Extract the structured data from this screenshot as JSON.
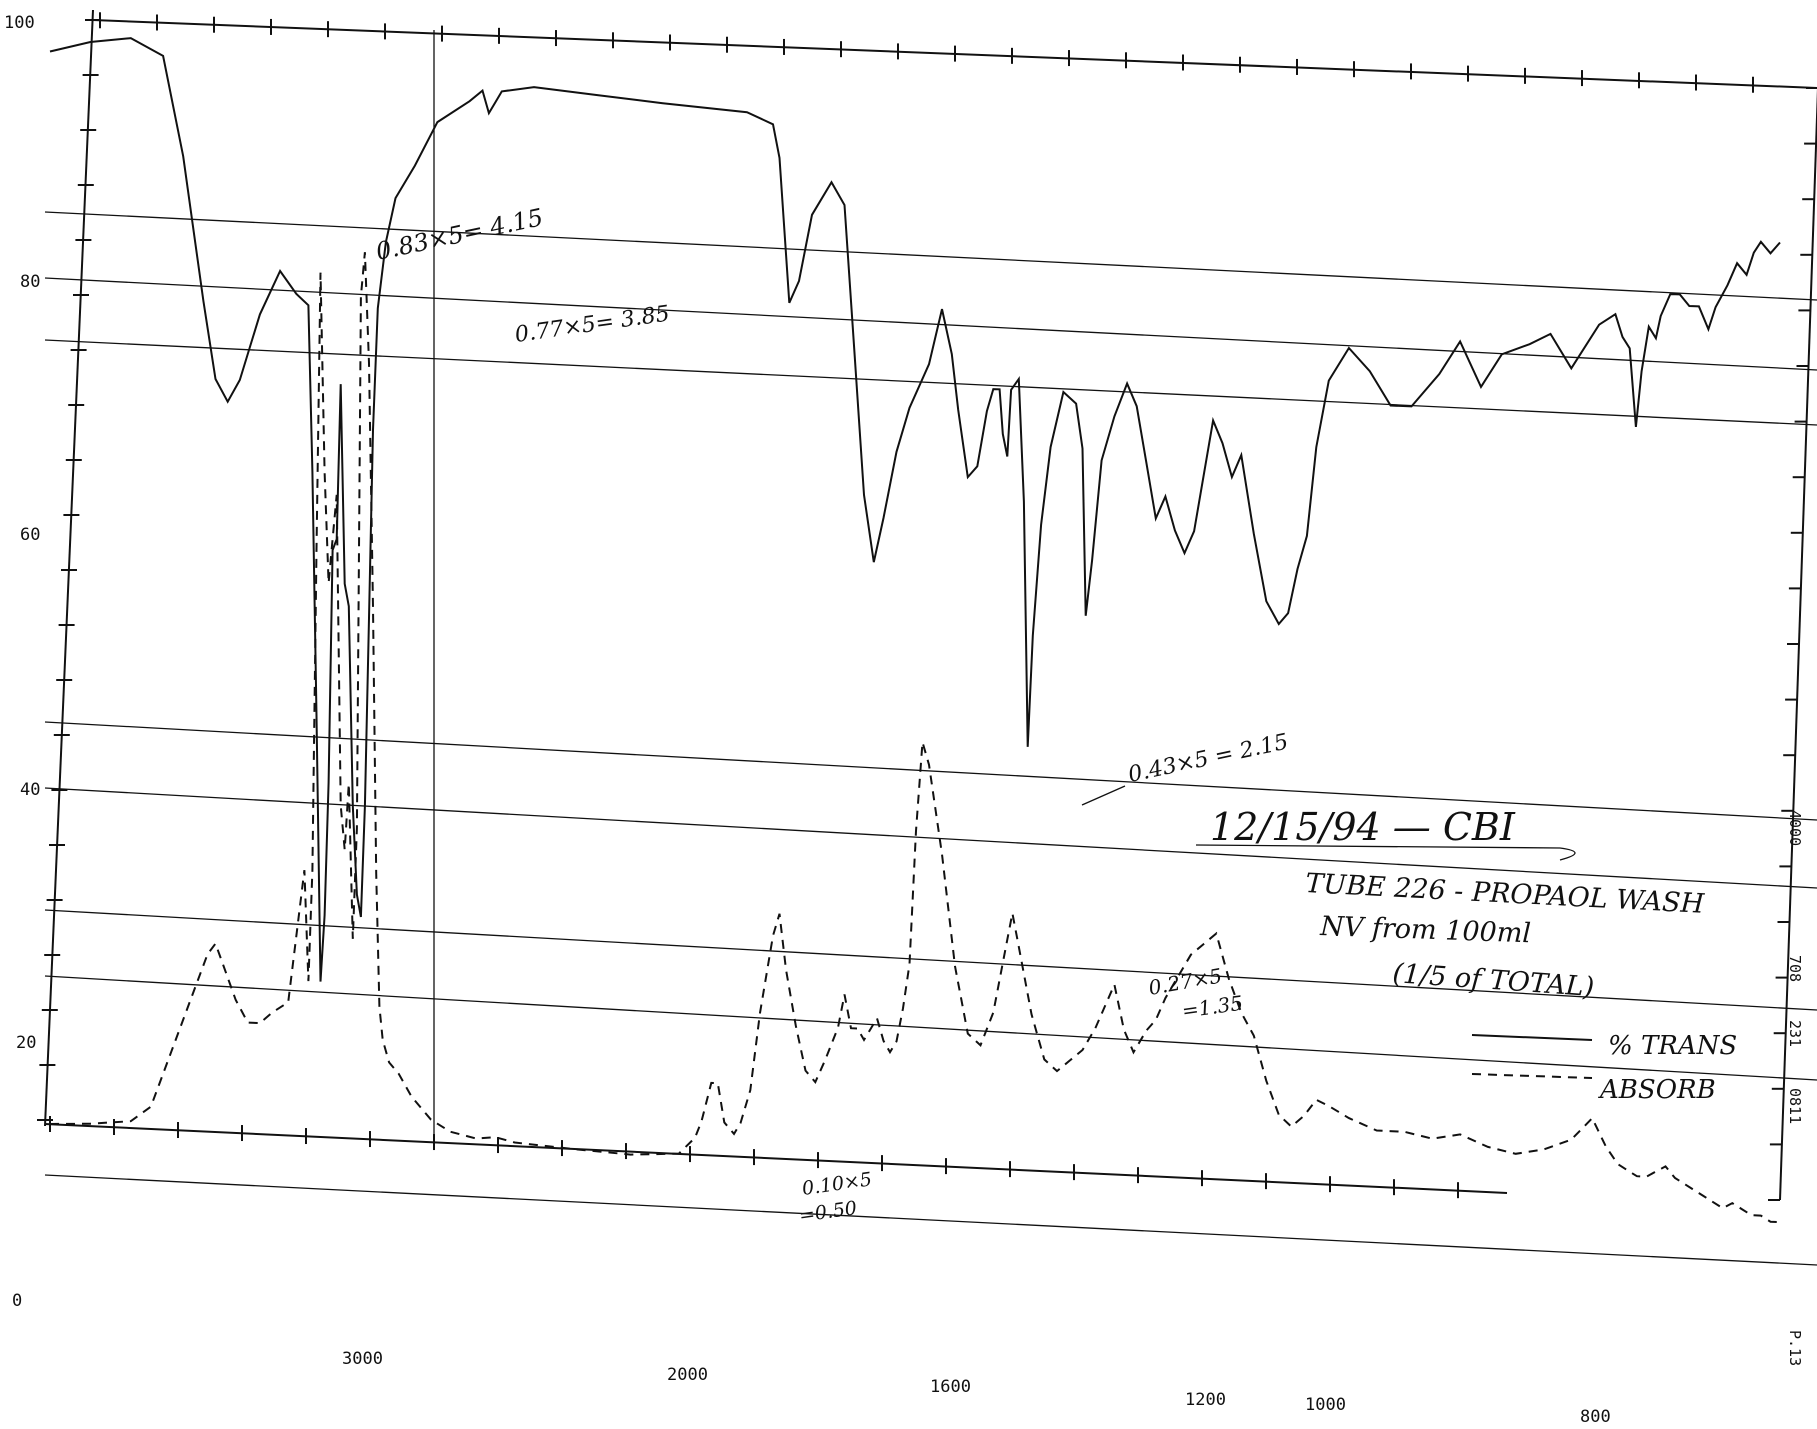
{
  "chart_data": {
    "type": "line",
    "title": "",
    "xlabel": "",
    "ylabel": "",
    "x_axis": {
      "reversed": true,
      "xlim": [
        3800,
        450
      ],
      "tick_labels": [
        "3000",
        "2000",
        "1600",
        "1200",
        "1000",
        "800"
      ]
    },
    "y_axis": {
      "ylim": [
        0,
        100
      ],
      "tick_labels": [
        "100",
        "80",
        "60",
        "40",
        "20",
        "0"
      ]
    },
    "grid": false,
    "series": [
      {
        "name": "% Trans",
        "style": "solid",
        "points": [
          [
            3800,
            97
          ],
          [
            3700,
            98
          ],
          [
            3600,
            98.5
          ],
          [
            3520,
            97
          ],
          [
            3470,
            88
          ],
          [
            3420,
            75
          ],
          [
            3390,
            68
          ],
          [
            3360,
            66
          ],
          [
            3330,
            68
          ],
          [
            3280,
            74
          ],
          [
            3230,
            78
          ],
          [
            3190,
            76
          ],
          [
            3160,
            75
          ],
          [
            3150,
            60
          ],
          [
            3140,
            38
          ],
          [
            3130,
            14
          ],
          [
            3120,
            20
          ],
          [
            3110,
            32
          ],
          [
            3100,
            53
          ],
          [
            3090,
            54
          ],
          [
            3080,
            68
          ],
          [
            3070,
            50
          ],
          [
            3060,
            48
          ],
          [
            3050,
            30
          ],
          [
            3040,
            22
          ],
          [
            3030,
            20
          ],
          [
            3020,
            30
          ],
          [
            3010,
            47
          ],
          [
            3000,
            64
          ],
          [
            2985,
            75
          ],
          [
            2960,
            81
          ],
          [
            2930,
            85
          ],
          [
            2870,
            88
          ],
          [
            2800,
            92
          ],
          [
            2700,
            94
          ],
          [
            2660,
            95
          ],
          [
            2640,
            93
          ],
          [
            2620,
            94
          ],
          [
            2600,
            95
          ],
          [
            2500,
            95.5
          ],
          [
            2300,
            95
          ],
          [
            2100,
            94.5
          ],
          [
            1920,
            94
          ],
          [
            1880,
            93
          ],
          [
            1870,
            90
          ],
          [
            1855,
            77
          ],
          [
            1840,
            79
          ],
          [
            1820,
            85
          ],
          [
            1790,
            88
          ],
          [
            1770,
            86
          ],
          [
            1755,
            73
          ],
          [
            1740,
            60
          ],
          [
            1725,
            54
          ],
          [
            1710,
            58
          ],
          [
            1690,
            64
          ],
          [
            1670,
            68
          ],
          [
            1640,
            72
          ],
          [
            1620,
            77
          ],
          [
            1605,
            73
          ],
          [
            1595,
            68
          ],
          [
            1580,
            62
          ],
          [
            1565,
            63
          ],
          [
            1550,
            68
          ],
          [
            1540,
            70
          ],
          [
            1530,
            70
          ],
          [
            1525,
            66
          ],
          [
            1518,
            64
          ],
          [
            1512,
            70
          ],
          [
            1500,
            71
          ],
          [
            1492,
            60
          ],
          [
            1486,
            38
          ],
          [
            1478,
            48
          ],
          [
            1465,
            58
          ],
          [
            1450,
            65
          ],
          [
            1430,
            70
          ],
          [
            1410,
            69
          ],
          [
            1400,
            65
          ],
          [
            1395,
            50
          ],
          [
            1385,
            55
          ],
          [
            1370,
            64
          ],
          [
            1350,
            68
          ],
          [
            1330,
            71
          ],
          [
            1315,
            69
          ],
          [
            1300,
            64
          ],
          [
            1285,
            59
          ],
          [
            1270,
            61
          ],
          [
            1255,
            58
          ],
          [
            1240,
            56
          ],
          [
            1225,
            58
          ],
          [
            1210,
            63
          ],
          [
            1195,
            68
          ],
          [
            1180,
            66
          ],
          [
            1165,
            63
          ],
          [
            1150,
            65
          ],
          [
            1130,
            58
          ],
          [
            1110,
            52
          ],
          [
            1090,
            50
          ],
          [
            1075,
            51
          ],
          [
            1060,
            55
          ],
          [
            1045,
            58
          ],
          [
            1030,
            66
          ],
          [
            1010,
            72
          ],
          [
            990,
            75
          ],
          [
            975,
            73
          ],
          [
            960,
            70
          ],
          [
            945,
            70
          ],
          [
            925,
            73
          ],
          [
            910,
            76
          ],
          [
            895,
            72
          ],
          [
            880,
            75
          ],
          [
            860,
            76
          ],
          [
            845,
            77
          ],
          [
            830,
            74
          ],
          [
            810,
            78
          ],
          [
            795,
            79
          ],
          [
            780,
            77
          ],
          [
            765,
            76
          ],
          [
            752,
            69
          ],
          [
            740,
            74
          ],
          [
            725,
            78
          ],
          [
            710,
            77
          ],
          [
            700,
            79
          ],
          [
            680,
            81
          ],
          [
            660,
            81
          ],
          [
            640,
            80
          ],
          [
            620,
            80
          ],
          [
            600,
            78
          ],
          [
            585,
            80
          ],
          [
            560,
            82
          ],
          [
            540,
            84
          ],
          [
            520,
            83
          ],
          [
            505,
            85
          ],
          [
            490,
            86
          ],
          [
            470,
            85
          ],
          [
            450,
            86
          ]
        ]
      },
      {
        "name": "Absorb",
        "style": "dashed",
        "points": [
          [
            3800,
            0
          ],
          [
            3700,
            0.2
          ],
          [
            3600,
            0.6
          ],
          [
            3550,
            2
          ],
          [
            3500,
            7
          ],
          [
            3450,
            12
          ],
          [
            3410,
            16
          ],
          [
            3390,
            17
          ],
          [
            3370,
            15
          ],
          [
            3340,
            12
          ],
          [
            3310,
            10
          ],
          [
            3280,
            10
          ],
          [
            3250,
            11
          ],
          [
            3210,
            12
          ],
          [
            3190,
            18
          ],
          [
            3170,
            24
          ],
          [
            3160,
            14
          ],
          [
            3150,
            24
          ],
          [
            3140,
            53
          ],
          [
            3130,
            78
          ],
          [
            3120,
            60
          ],
          [
            3110,
            50
          ],
          [
            3100,
            54
          ],
          [
            3090,
            58
          ],
          [
            3080,
            30
          ],
          [
            3070,
            26
          ],
          [
            3060,
            32
          ],
          [
            3050,
            18
          ],
          [
            3040,
            28
          ],
          [
            3030,
            76
          ],
          [
            3020,
            80
          ],
          [
            3010,
            70
          ],
          [
            3000,
            48
          ],
          [
            2990,
            24
          ],
          [
            2980,
            12
          ],
          [
            2970,
            9
          ],
          [
            2950,
            7
          ],
          [
            2920,
            6
          ],
          [
            2880,
            4
          ],
          [
            2820,
            2
          ],
          [
            2760,
            1
          ],
          [
            2680,
            0.5
          ],
          [
            2620,
            0.7
          ],
          [
            2560,
            0.3
          ],
          [
            2400,
            0
          ],
          [
            2200,
            -0.3
          ],
          [
            2050,
            0
          ],
          [
            2000,
            1.5
          ],
          [
            1990,
            3
          ],
          [
            1975,
            6.5
          ],
          [
            1965,
            6.5
          ],
          [
            1955,
            3
          ],
          [
            1940,
            2
          ],
          [
            1930,
            3
          ],
          [
            1915,
            6
          ],
          [
            1900,
            13
          ],
          [
            1880,
            20
          ],
          [
            1870,
            22
          ],
          [
            1860,
            17
          ],
          [
            1845,
            12
          ],
          [
            1830,
            8
          ],
          [
            1815,
            7
          ],
          [
            1800,
            9
          ],
          [
            1780,
            12
          ],
          [
            1770,
            15
          ],
          [
            1760,
            12
          ],
          [
            1750,
            12
          ],
          [
            1740,
            11
          ],
          [
            1730,
            12
          ],
          [
            1720,
            13
          ],
          [
            1710,
            11
          ],
          [
            1700,
            10
          ],
          [
            1690,
            11
          ],
          [
            1680,
            14
          ],
          [
            1670,
            18
          ],
          [
            1660,
            30
          ],
          [
            1650,
            38
          ],
          [
            1640,
            36
          ],
          [
            1620,
            28
          ],
          [
            1600,
            18
          ],
          [
            1580,
            12
          ],
          [
            1560,
            11
          ],
          [
            1540,
            14
          ],
          [
            1520,
            20
          ],
          [
            1510,
            23
          ],
          [
            1500,
            20
          ],
          [
            1480,
            14
          ],
          [
            1460,
            10
          ],
          [
            1440,
            9
          ],
          [
            1420,
            10
          ],
          [
            1400,
            11
          ],
          [
            1380,
            13
          ],
          [
            1365,
            15
          ],
          [
            1350,
            17
          ],
          [
            1335,
            13
          ],
          [
            1320,
            11
          ],
          [
            1300,
            13
          ],
          [
            1285,
            14
          ],
          [
            1270,
            16
          ],
          [
            1250,
            18
          ],
          [
            1230,
            20
          ],
          [
            1210,
            21
          ],
          [
            1190,
            22
          ],
          [
            1170,
            18
          ],
          [
            1150,
            15
          ],
          [
            1130,
            13
          ],
          [
            1110,
            9
          ],
          [
            1090,
            6
          ],
          [
            1070,
            5
          ],
          [
            1050,
            6
          ],
          [
            1030,
            7.5
          ],
          [
            1010,
            7
          ],
          [
            990,
            6
          ],
          [
            970,
            5
          ],
          [
            950,
            5
          ],
          [
            930,
            4.5
          ],
          [
            910,
            5
          ],
          [
            890,
            4
          ],
          [
            870,
            3.5
          ],
          [
            850,
            4
          ],
          [
            830,
            5
          ],
          [
            815,
            7
          ],
          [
            805,
            4.5
          ],
          [
            790,
            3
          ],
          [
            770,
            2.5
          ],
          [
            750,
            2
          ],
          [
            730,
            2
          ],
          [
            710,
            2.5
          ],
          [
            690,
            3
          ],
          [
            670,
            2
          ],
          [
            650,
            1.5
          ],
          [
            630,
            1
          ],
          [
            610,
            0.5
          ],
          [
            590,
            0
          ],
          [
            570,
            -0.5
          ],
          [
            550,
            0
          ],
          [
            530,
            -0.5
          ],
          [
            510,
            -1
          ],
          [
            490,
            -1
          ],
          [
            470,
            -1.5
          ],
          [
            450,
            -1.5
          ]
        ]
      }
    ],
    "annotations": [
      "0.83×5= 4.15",
      "0.77×5= 3.85",
      "0.43×5 = 2.15",
      "0.27×5",
      "=1.35",
      "0.10×5",
      "=0.50",
      "12/15/94 — CBI",
      "TUBE 226 - PROPAOL WASH",
      "NV from 100ml",
      "(1/5 of TOTAL)"
    ],
    "legend": {
      "placement": "right",
      "entries": [
        {
          "label": "% TRANS",
          "style": "solid"
        },
        {
          "label": "ABSORB",
          "style": "dashed"
        }
      ]
    },
    "margin_text": [
      "P.13",
      "0811",
      "231",
      "708",
      "4000"
    ]
  }
}
